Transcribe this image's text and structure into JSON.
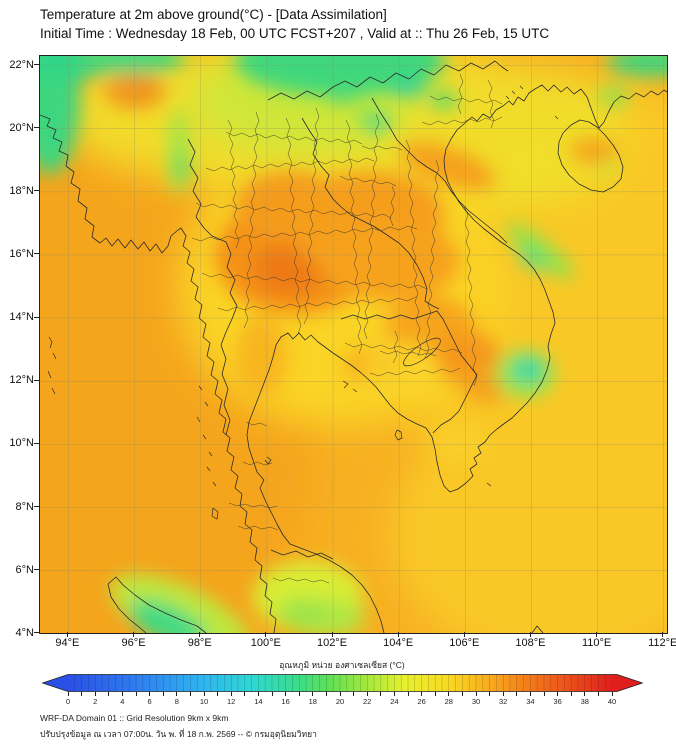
{
  "header": {
    "line1": "Temperature at 2m above ground(°C) - [Data Assimilation]",
    "line2": "Initial Time : Wednesday 18 Feb, 00 UTC FCST+207 , Valid at :: Thu 26 Feb, 15 UTC"
  },
  "map": {
    "lat_labels": [
      "22°N",
      "20°N",
      "18°N",
      "16°N",
      "14°N",
      "12°N",
      "10°N",
      "8°N",
      "6°N",
      "4°N"
    ],
    "lon_labels": [
      "94°E",
      "96°E",
      "98°E",
      "100°E",
      "102°E",
      "104°E",
      "106°E",
      "108°E",
      "110°E",
      "112°E"
    ],
    "region": "Thailand / Indochina domain",
    "grid_interval_deg": 2
  },
  "colorbar": {
    "title": "อุณหภูมิ หน่วย องศาเซลเซียส (°C)",
    "tick_labels": [
      "0",
      "2",
      "4",
      "6",
      "8",
      "10",
      "12",
      "14",
      "16",
      "18",
      "20",
      "22",
      "24",
      "26",
      "28",
      "30",
      "32",
      "34",
      "36",
      "38",
      "40"
    ],
    "min": 0,
    "max": 40,
    "units": "°C",
    "gradient_stops": [
      {
        "t": 0,
        "color": "#2B50E5"
      },
      {
        "t": 5,
        "color": "#2F7BF0"
      },
      {
        "t": 10,
        "color": "#2FB6F0"
      },
      {
        "t": 14,
        "color": "#2FD8D0"
      },
      {
        "t": 17,
        "color": "#38DD8C"
      },
      {
        "t": 19,
        "color": "#5FE055"
      },
      {
        "t": 22,
        "color": "#A5E93C"
      },
      {
        "t": 25,
        "color": "#E7F02C"
      },
      {
        "t": 28,
        "color": "#F9D922"
      },
      {
        "t": 31,
        "color": "#F8A81C"
      },
      {
        "t": 34,
        "color": "#F3791A"
      },
      {
        "t": 37,
        "color": "#EB4A1B"
      },
      {
        "t": 40,
        "color": "#DE1F1D"
      }
    ]
  },
  "footer": {
    "line1": "WRF-DA Domain 01 :: Grid Resolution 9km x 9km",
    "line2": "ปรับปรุงข้อมูล ณ เวลา 07:00น. วัน พ. ที่ 18 ก.พ. 2569 -- © กรมอุตุนิยมวิทยา"
  },
  "colors": {
    "sea_base": "#F7B022",
    "west_sea": "#F5A51E",
    "east_sea": "#F9C827",
    "gulf_tonkin": "#F0DF2B",
    "land_yellow": "#FBD828",
    "warm_orange": "#F49118",
    "hot_core": "#EE7A14",
    "cool_green": "#3ED67F",
    "cool_teal": "#2CD7A6",
    "boundary_line": "#2b2b2b",
    "grid_line": "#8a8a6e"
  }
}
